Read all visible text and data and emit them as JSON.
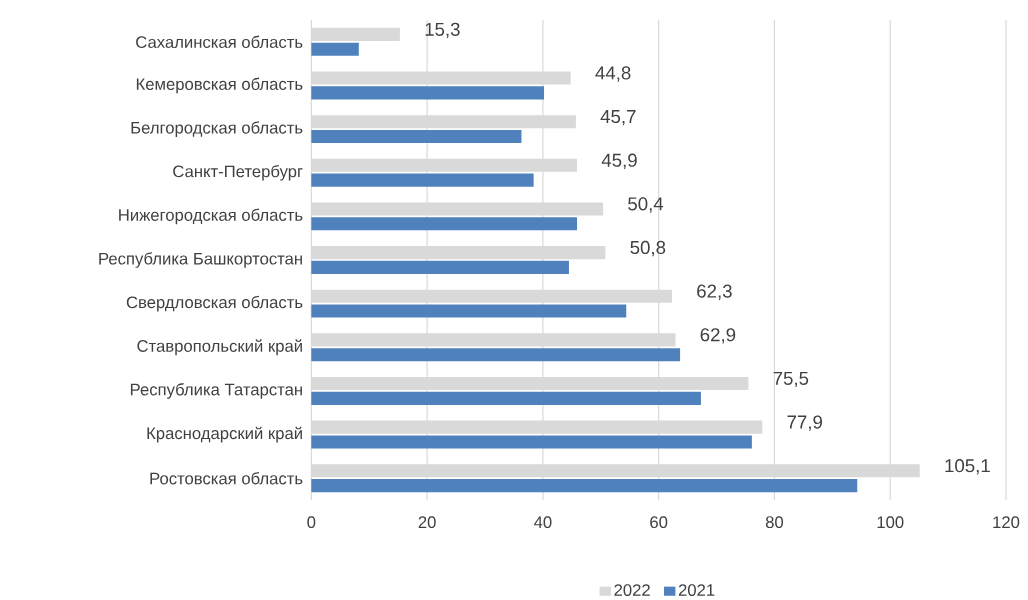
{
  "chart_data": {
    "type": "bar",
    "orientation": "horizontal",
    "categories": [
      "Сахалинская область",
      "Кемеровская область",
      "Белгородская область",
      "Санкт-Петербург",
      "Нижегородская область",
      "Республика Башкортостан",
      "Свердловская область",
      "Ставропольский край",
      "Республика Татарстан",
      "Краснодарский край",
      "Ростовская область"
    ],
    "series": [
      {
        "name": "2022",
        "color": "#d9d9d9",
        "values": [
          15.3,
          44.8,
          45.7,
          45.9,
          50.4,
          50.8,
          62.3,
          62.9,
          75.5,
          77.9,
          105.1
        ],
        "value_labels": [
          "15,3",
          "44,8",
          "45,7",
          "45,9",
          "50,4",
          "50,8",
          "62,3",
          "62,9",
          "75,5",
          "77,9",
          "105,1"
        ]
      },
      {
        "name": "2021",
        "color": "#4f81bd",
        "values": [
          8.2,
          40.2,
          36.3,
          38.4,
          45.9,
          44.5,
          54.4,
          63.7,
          67.3,
          76.1,
          94.3
        ]
      }
    ],
    "xlim": [
      0,
      120
    ],
    "xticks": [
      0,
      20,
      40,
      60,
      80,
      100,
      120
    ],
    "grid": "x",
    "legend": "bottom"
  }
}
